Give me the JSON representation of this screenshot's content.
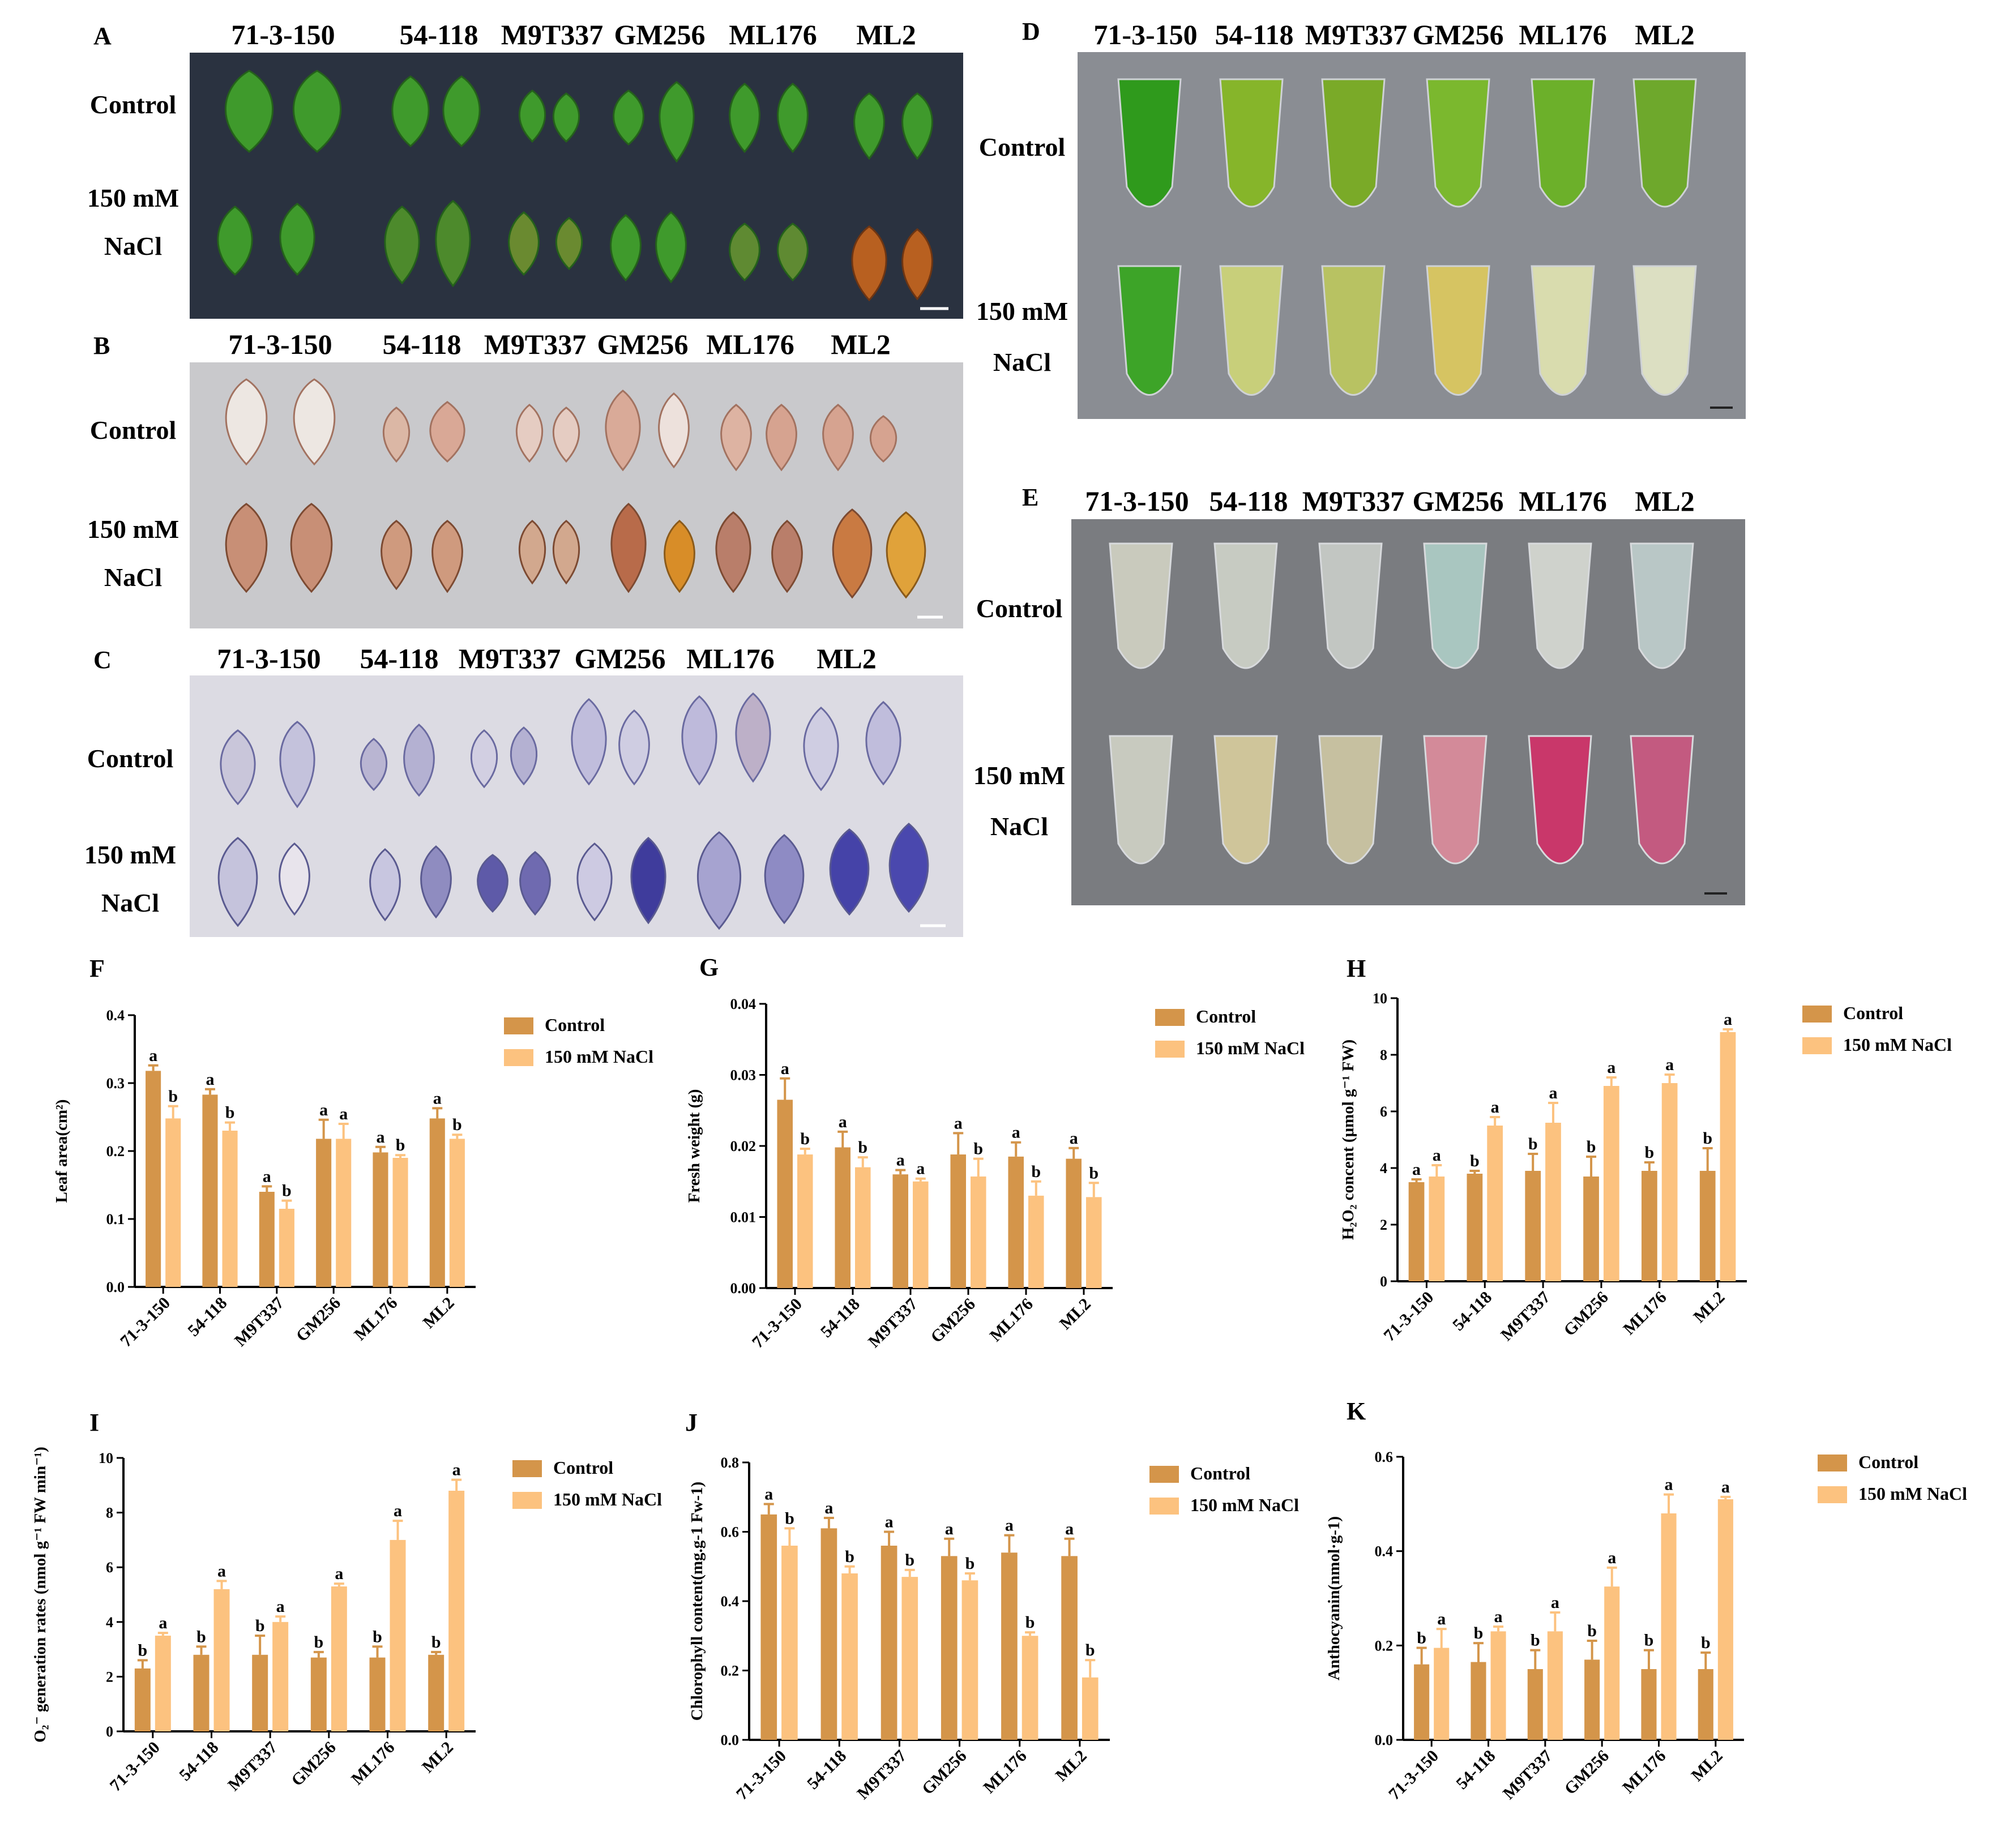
{
  "genotypes": [
    "71-3-150",
    "54-118",
    "M9T337",
    "GM256",
    "ML176",
    "ML2"
  ],
  "treatments": {
    "control": "Control",
    "salt_line1": "150 mM",
    "salt_line2": "NaCl",
    "salt_full": "150 mM NaCl"
  },
  "colors": {
    "control": "#d4954a",
    "salt": "#fcc27f",
    "photo_dark": "#2a3240",
    "photo_gray": "#c9c9cc",
    "photo_nbt": "#dcdbe3",
    "photo_tube": "#8a8d93",
    "photo_tube2": "#7a7c80"
  },
  "photo_panels": [
    {
      "id": "A",
      "label": "A",
      "content": "leaf photograph"
    },
    {
      "id": "B",
      "label": "B",
      "content": "DAB stained leaves"
    },
    {
      "id": "C",
      "label": "C",
      "content": "NBT stained leaves"
    },
    {
      "id": "D",
      "label": "D",
      "content": "chlorophyll extract tubes"
    },
    {
      "id": "E",
      "label": "E",
      "content": "anthocyanin extract tubes"
    }
  ],
  "chart_data": [
    {
      "id": "F",
      "label": "F",
      "type": "bar",
      "ylabel": "Leaf area(cm²)",
      "ylim": [
        0,
        0.4
      ],
      "yticks": [
        "0.0",
        "0.1",
        "0.2",
        "0.3",
        "0.4"
      ],
      "categories": [
        "71-3-150",
        "54-118",
        "M9T337",
        "GM256",
        "ML176",
        "ML2"
      ],
      "series": [
        {
          "name": "Control",
          "values": [
            0.318,
            0.283,
            0.14,
            0.218,
            0.198,
            0.248
          ],
          "errors": [
            0.008,
            0.008,
            0.008,
            0.028,
            0.008,
            0.015
          ],
          "letters": [
            "a",
            "a",
            "a",
            "a",
            "a",
            "a"
          ]
        },
        {
          "name": "150 mM NaCl",
          "values": [
            0.248,
            0.23,
            0.115,
            0.218,
            0.19,
            0.218
          ],
          "errors": [
            0.018,
            0.012,
            0.012,
            0.022,
            0.004,
            0.006
          ],
          "letters": [
            "b",
            "b",
            "b",
            "a",
            "b",
            "b"
          ]
        }
      ]
    },
    {
      "id": "G",
      "label": "G",
      "type": "bar",
      "ylabel": "Fresh weight (g)",
      "ylim": [
        0,
        0.04
      ],
      "yticks": [
        "0.00",
        "0.01",
        "0.02",
        "0.03",
        "0.04"
      ],
      "categories": [
        "71-3-150",
        "54-118",
        "M9T337",
        "GM256",
        "ML176",
        "ML2"
      ],
      "series": [
        {
          "name": "Control",
          "values": [
            0.0265,
            0.0198,
            0.016,
            0.0188,
            0.0185,
            0.0182
          ],
          "errors": [
            0.003,
            0.0022,
            0.0006,
            0.003,
            0.002,
            0.0015
          ],
          "letters": [
            "a",
            "a",
            "a",
            "a",
            "a",
            "a"
          ]
        },
        {
          "name": "150 mM NaCl",
          "values": [
            0.0188,
            0.017,
            0.015,
            0.0157,
            0.013,
            0.0128
          ],
          "errors": [
            0.0008,
            0.0014,
            0.0004,
            0.0025,
            0.002,
            0.002
          ],
          "letters": [
            "b",
            "b",
            "a",
            "b",
            "b",
            "b"
          ]
        }
      ]
    },
    {
      "id": "H",
      "label": "H",
      "type": "bar",
      "ylabel": "H₂O₂ concent (μmol g⁻¹ FW)",
      "ylim": [
        0,
        10
      ],
      "yticks": [
        "0",
        "2",
        "4",
        "6",
        "8",
        "10"
      ],
      "categories": [
        "71-3-150",
        "54-118",
        "M9T337",
        "GM256",
        "ML176",
        "ML2"
      ],
      "series": [
        {
          "name": "Control",
          "values": [
            3.5,
            3.8,
            3.9,
            3.7,
            3.9,
            3.9
          ],
          "errors": [
            0.1,
            0.1,
            0.6,
            0.7,
            0.3,
            0.8
          ],
          "letters": [
            "a",
            "b",
            "b",
            "b",
            "b",
            "b"
          ]
        },
        {
          "name": "150 mM NaCl",
          "values": [
            3.7,
            5.5,
            5.6,
            6.9,
            7.0,
            8.8
          ],
          "errors": [
            0.4,
            0.3,
            0.7,
            0.3,
            0.3,
            0.1
          ],
          "letters": [
            "a",
            "a",
            "a",
            "a",
            "a",
            "a"
          ]
        }
      ]
    },
    {
      "id": "I",
      "label": "I",
      "type": "bar",
      "ylabel": "O₂⁻ generation rates (nmol g⁻¹ FW min⁻¹)",
      "ylim": [
        0,
        10
      ],
      "yticks": [
        "0",
        "2",
        "4",
        "6",
        "8",
        "10"
      ],
      "categories": [
        "71-3-150",
        "54-118",
        "M9T337",
        "GM256",
        "ML176",
        "ML2"
      ],
      "series": [
        {
          "name": "Control",
          "values": [
            2.3,
            2.8,
            2.8,
            2.7,
            2.7,
            2.8
          ],
          "errors": [
            0.3,
            0.3,
            0.7,
            0.2,
            0.4,
            0.1
          ],
          "letters": [
            "b",
            "b",
            "b",
            "b",
            "b",
            "b"
          ]
        },
        {
          "name": "150 mM NaCl",
          "values": [
            3.5,
            5.2,
            4.0,
            5.3,
            7.0,
            8.8
          ],
          "errors": [
            0.1,
            0.3,
            0.2,
            0.1,
            0.7,
            0.4
          ],
          "letters": [
            "a",
            "a",
            "a",
            "a",
            "a",
            "a"
          ]
        }
      ]
    },
    {
      "id": "J",
      "label": "J",
      "type": "bar",
      "ylabel": "Chlorophyll content(mg.g-1 Fw-1)",
      "ylim": [
        0,
        0.8
      ],
      "yticks": [
        "0.0",
        "0.2",
        "0.4",
        "0.6",
        "0.8"
      ],
      "categories": [
        "71-3-150",
        "54-118",
        "M9T337",
        "GM256",
        "ML176",
        "ML2"
      ],
      "series": [
        {
          "name": "Control",
          "values": [
            0.65,
            0.61,
            0.56,
            0.53,
            0.54,
            0.53
          ],
          "errors": [
            0.03,
            0.03,
            0.04,
            0.05,
            0.05,
            0.05
          ],
          "letters": [
            "a",
            "a",
            "a",
            "a",
            "a",
            "a"
          ]
        },
        {
          "name": "150 mM NaCl",
          "values": [
            0.56,
            0.48,
            0.47,
            0.46,
            0.3,
            0.18
          ],
          "errors": [
            0.05,
            0.02,
            0.02,
            0.02,
            0.01,
            0.05
          ],
          "letters": [
            "b",
            "b",
            "b",
            "b",
            "b",
            "b"
          ]
        }
      ]
    },
    {
      "id": "K",
      "label": "K",
      "type": "bar",
      "ylabel": "Anthocyanin(nmol·g-1)",
      "ylim": [
        0,
        0.6
      ],
      "yticks": [
        "0.0",
        "0.2",
        "0.4",
        "0.6"
      ],
      "categories": [
        "71-3-150",
        "54-118",
        "M9T337",
        "GM256",
        "ML176",
        "ML2"
      ],
      "series": [
        {
          "name": "Control",
          "values": [
            0.16,
            0.165,
            0.15,
            0.17,
            0.15,
            0.15
          ],
          "errors": [
            0.035,
            0.04,
            0.04,
            0.04,
            0.04,
            0.035
          ],
          "letters": [
            "b",
            "b",
            "b",
            "b",
            "b",
            "b"
          ]
        },
        {
          "name": "150 mM NaCl",
          "values": [
            0.195,
            0.23,
            0.23,
            0.325,
            0.48,
            0.51
          ],
          "errors": [
            0.04,
            0.01,
            0.04,
            0.04,
            0.04,
            0.005
          ],
          "letters": [
            "a",
            "a",
            "a",
            "a",
            "a",
            "a"
          ]
        }
      ]
    }
  ]
}
